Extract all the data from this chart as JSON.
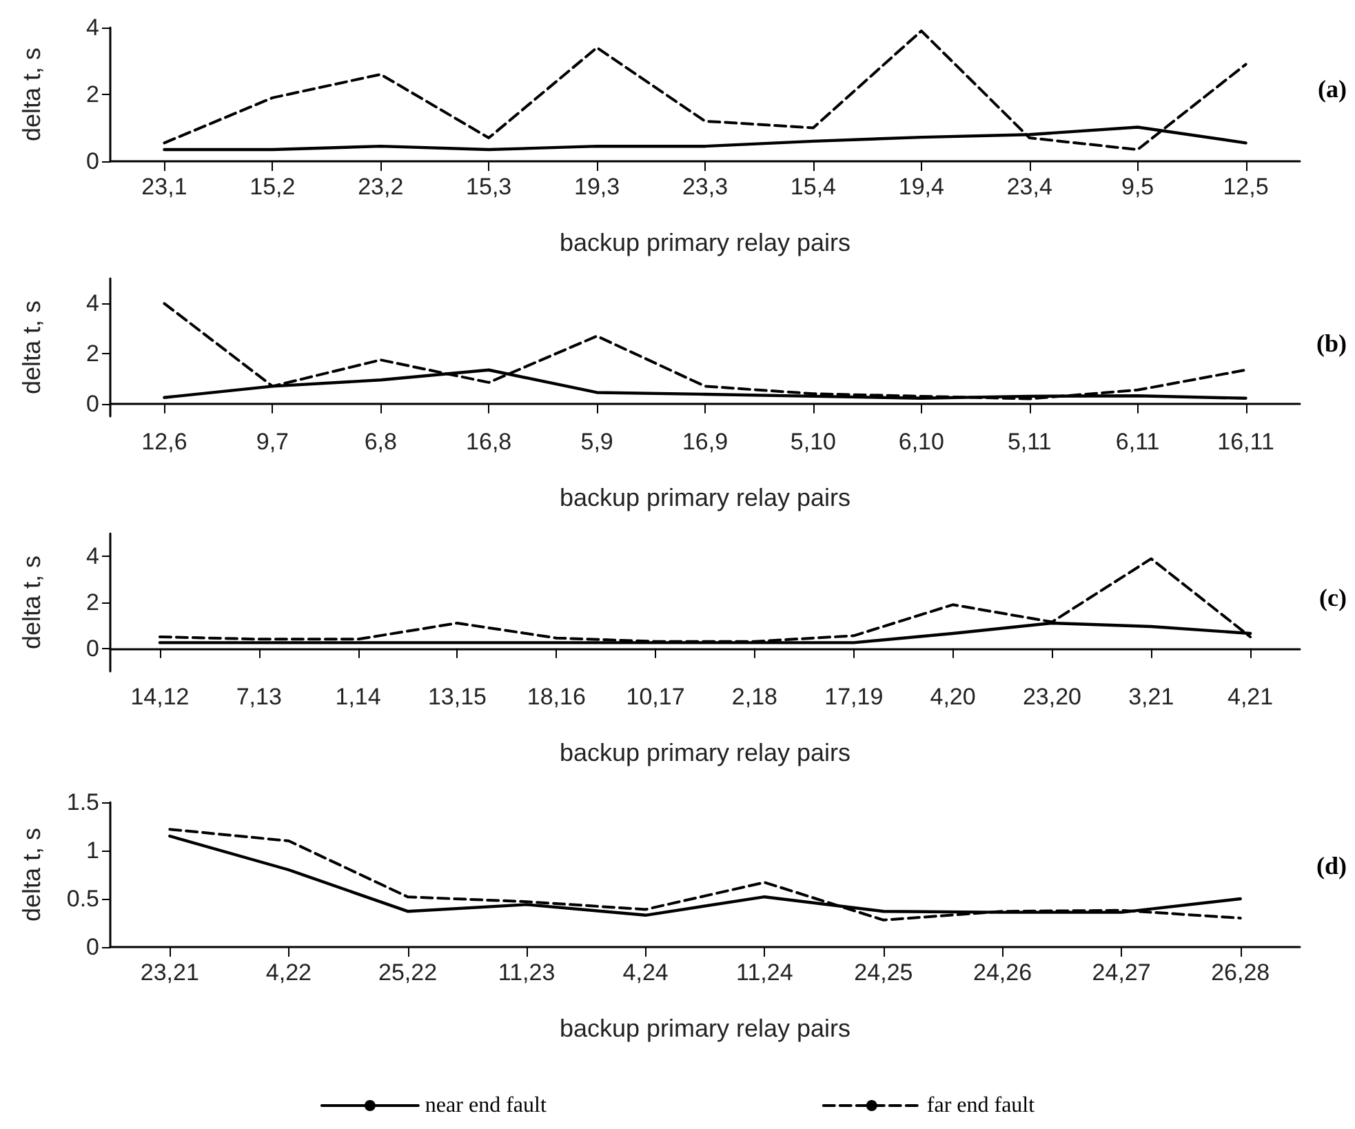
{
  "chart_data": [
    {
      "type": "line",
      "ylabel": "delta t, s",
      "xlabel": "backup primary relay pairs",
      "annotations": [
        "(a)"
      ],
      "categories": [
        "23,1",
        "15,2",
        "23,2",
        "15,3",
        "19,3",
        "23,3",
        "15,4",
        "19,4",
        "23,4",
        "9,5",
        "12,5"
      ],
      "ylim": [
        0,
        4
      ],
      "yticks": [
        0,
        2,
        4
      ],
      "grid": false,
      "legend": false,
      "marker": "none",
      "series": [
        {
          "color": "#000000",
          "line_style": "solid",
          "values": [
            0.35,
            0.35,
            0.45,
            0.35,
            0.45,
            0.45,
            0.6,
            0.72,
            0.8,
            1.02,
            0.55
          ]
        },
        {
          "color": "#000000",
          "line_style": "dashed",
          "values": [
            0.55,
            1.9,
            2.6,
            0.7,
            3.4,
            1.2,
            1.0,
            3.9,
            0.7,
            0.35,
            2.9
          ]
        }
      ]
    },
    {
      "type": "line",
      "ylabel": "delta t, s",
      "xlabel": "backup primary relay pairs",
      "annotations": [
        "(b)"
      ],
      "categories": [
        "12,6",
        "9,7",
        "6,8",
        "16,8",
        "5,9",
        "16,9",
        "5,10",
        "6,10",
        "5,11",
        "6,11",
        "16,11"
      ],
      "ylim": [
        -0.5,
        5
      ],
      "yticks": [
        0,
        2,
        4
      ],
      "grid": false,
      "legend": false,
      "marker": "none",
      "series": [
        {
          "color": "#000000",
          "line_style": "solid",
          "values": [
            0.25,
            0.7,
            0.95,
            1.35,
            0.45,
            0.38,
            0.3,
            0.22,
            0.3,
            0.32,
            0.22
          ]
        },
        {
          "color": "#000000",
          "line_style": "dashed",
          "values": [
            4.0,
            0.7,
            1.75,
            0.85,
            2.7,
            0.7,
            0.4,
            0.3,
            0.2,
            0.55,
            1.35
          ]
        }
      ]
    },
    {
      "type": "line",
      "ylabel": "delta t, s",
      "xlabel": "backup primary relay pairs",
      "annotations": [
        "(c)"
      ],
      "categories": [
        "14,12",
        "7,13",
        "1,14",
        "13,15",
        "18,16",
        "10,17",
        "2,18",
        "17,19",
        "4,20",
        "23,20",
        "3,21",
        "4,21"
      ],
      "ylim": [
        -1,
        5
      ],
      "yticks": [
        0,
        2,
        4
      ],
      "grid": false,
      "legend": false,
      "marker": "none",
      "series": [
        {
          "color": "#000000",
          "line_style": "solid",
          "values": [
            0.25,
            0.25,
            0.25,
            0.25,
            0.25,
            0.25,
            0.25,
            0.25,
            0.65,
            1.1,
            0.95,
            0.65
          ]
        },
        {
          "color": "#000000",
          "line_style": "dashed",
          "values": [
            0.5,
            0.4,
            0.4,
            1.1,
            0.45,
            0.3,
            0.3,
            0.55,
            1.9,
            1.15,
            3.9,
            0.5
          ]
        }
      ]
    },
    {
      "type": "line",
      "ylabel": "delta t, s",
      "xlabel": "backup primary relay pairs",
      "annotations": [
        "(d)"
      ],
      "categories": [
        "23,21",
        "4,22",
        "25,22",
        "11,23",
        "4,24",
        "11,24",
        "24,25",
        "24,26",
        "24,27",
        "26,28"
      ],
      "ylim": [
        0,
        1.5
      ],
      "yticks": [
        0,
        0.5,
        1,
        1.5
      ],
      "grid": false,
      "legend": "bottom",
      "marker": "none",
      "series": [
        {
          "name": "near end fault",
          "color": "#000000",
          "line_style": "solid",
          "values": [
            1.15,
            0.8,
            0.37,
            0.44,
            0.33,
            0.52,
            0.37,
            0.36,
            0.36,
            0.5
          ]
        },
        {
          "name": "far end fault",
          "color": "#000000",
          "line_style": "dashed",
          "values": [
            1.22,
            1.1,
            0.52,
            0.47,
            0.39,
            0.67,
            0.28,
            0.37,
            0.38,
            0.3
          ]
        }
      ]
    }
  ]
}
